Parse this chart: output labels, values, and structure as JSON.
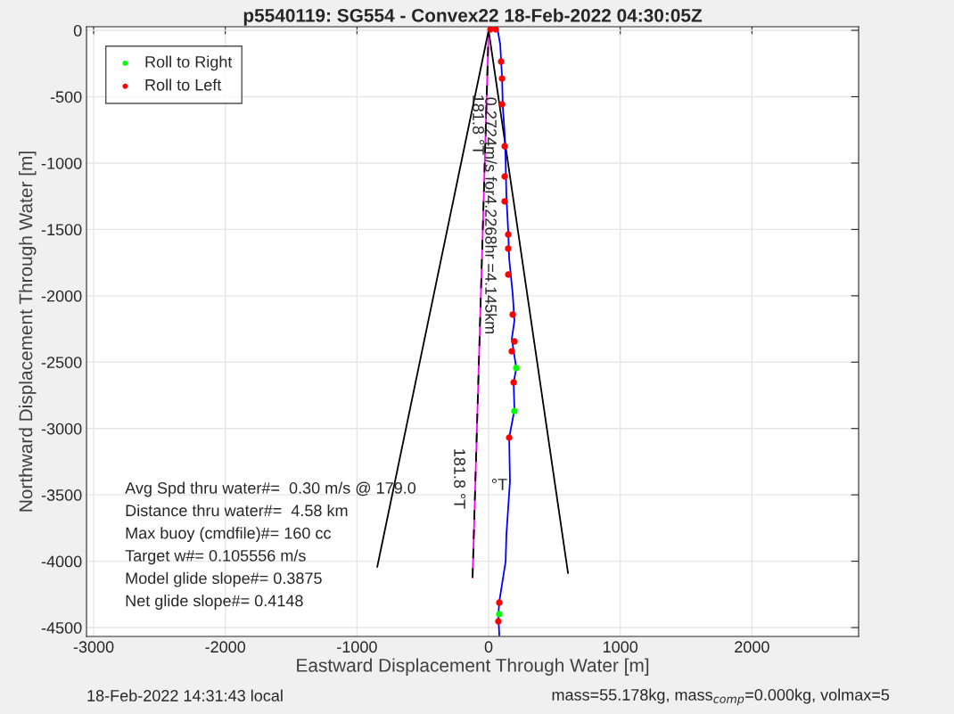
{
  "chart_data": {
    "type": "line",
    "title": "p5540119: SG554 - Convex22 18-Feb-2022 04:30:05Z",
    "xlabel": "Eastward Displacement Through Water [m]",
    "ylabel": "Northward Displacement Through Water [m]",
    "xlim": [
      -3054,
      2810
    ],
    "ylim": [
      -4567,
      27
    ],
    "xticks": [
      -3000,
      -2000,
      -1000,
      0,
      1000,
      2000
    ],
    "yticks": [
      -4500,
      -4000,
      -3500,
      -3000,
      -2500,
      -2000,
      -1500,
      -1000,
      -500,
      0
    ],
    "grid": true,
    "legend": "top left",
    "series": [
      {
        "color": "#000000",
        "x": [
          0,
          -846
        ],
        "values": [
          0,
          -4043
        ]
      },
      {
        "color": "#000000",
        "x": [
          0,
          603
        ],
        "values": [
          0,
          -4090
        ]
      },
      {
        "color": "#ff00ff",
        "x": [
          0,
          -122
        ],
        "values": [
          0,
          -4124
        ]
      },
      {
        "color": "#000000",
        "line_style": "dashed",
        "x": [
          -122,
          0
        ],
        "values": [
          -4124,
          0
        ]
      },
      {
        "color": "#0000ff",
        "x": [
          0,
          68,
          88,
          102,
          108,
          122,
          129,
          135,
          149,
          156,
          183,
          196,
          176,
          210,
          190,
          196,
          156,
          162,
          135,
          129,
          81,
          74,
          81
        ],
        "values": [
          0,
          7,
          -107,
          -356,
          -578,
          -779,
          -981,
          -1249,
          -1518,
          -1719,
          -1988,
          -2189,
          -2324,
          -2545,
          -2653,
          -2861,
          -3069,
          -3398,
          -3801,
          -4003,
          -4305,
          -4406,
          -4560
        ]
      },
      {
        "type": "scatter",
        "name": "Roll to Right",
        "color": "#00ff00",
        "marker": "circle",
        "x": [
          210,
          196,
          81
        ],
        "values": [
          -2545,
          -2868,
          -4399
        ]
      },
      {
        "type": "scatter",
        "name": "Roll to Left",
        "color": "#ff0000",
        "marker": "circle",
        "x": [
          14,
          54,
          95,
          102,
          102,
          122,
          122,
          122,
          149,
          149,
          149,
          183,
          196,
          176,
          190,
          156,
          81,
          74
        ],
        "values": [
          7,
          7,
          -235,
          -363,
          -557,
          -873,
          -1101,
          -1289,
          -1538,
          -1645,
          -1840,
          -2142,
          -2344,
          -2418,
          -2653,
          -3069,
          -4312,
          -4453
        ]
      }
    ],
    "annotations": [
      "181.8 °T",
      "0.2724m/s for4.2268hr =4.145km",
      "181.8 °T",
      "°T",
      "Avg Spd thru water#=  0.30 m/s @ 179.0",
      "Distance thru water#=  4.58 km",
      "Max buoy (cmdfile)#= 160 cc",
      "Target w#= 0.105556 m/s",
      "Model glide slope#= 0.3875",
      "Net glide slope#= 0.4148",
      "18-Feb-2022 14:31:43 local",
      "mass=55.178kg, mass$_{comp}$=0.000kg, volmax=5"
    ]
  }
}
